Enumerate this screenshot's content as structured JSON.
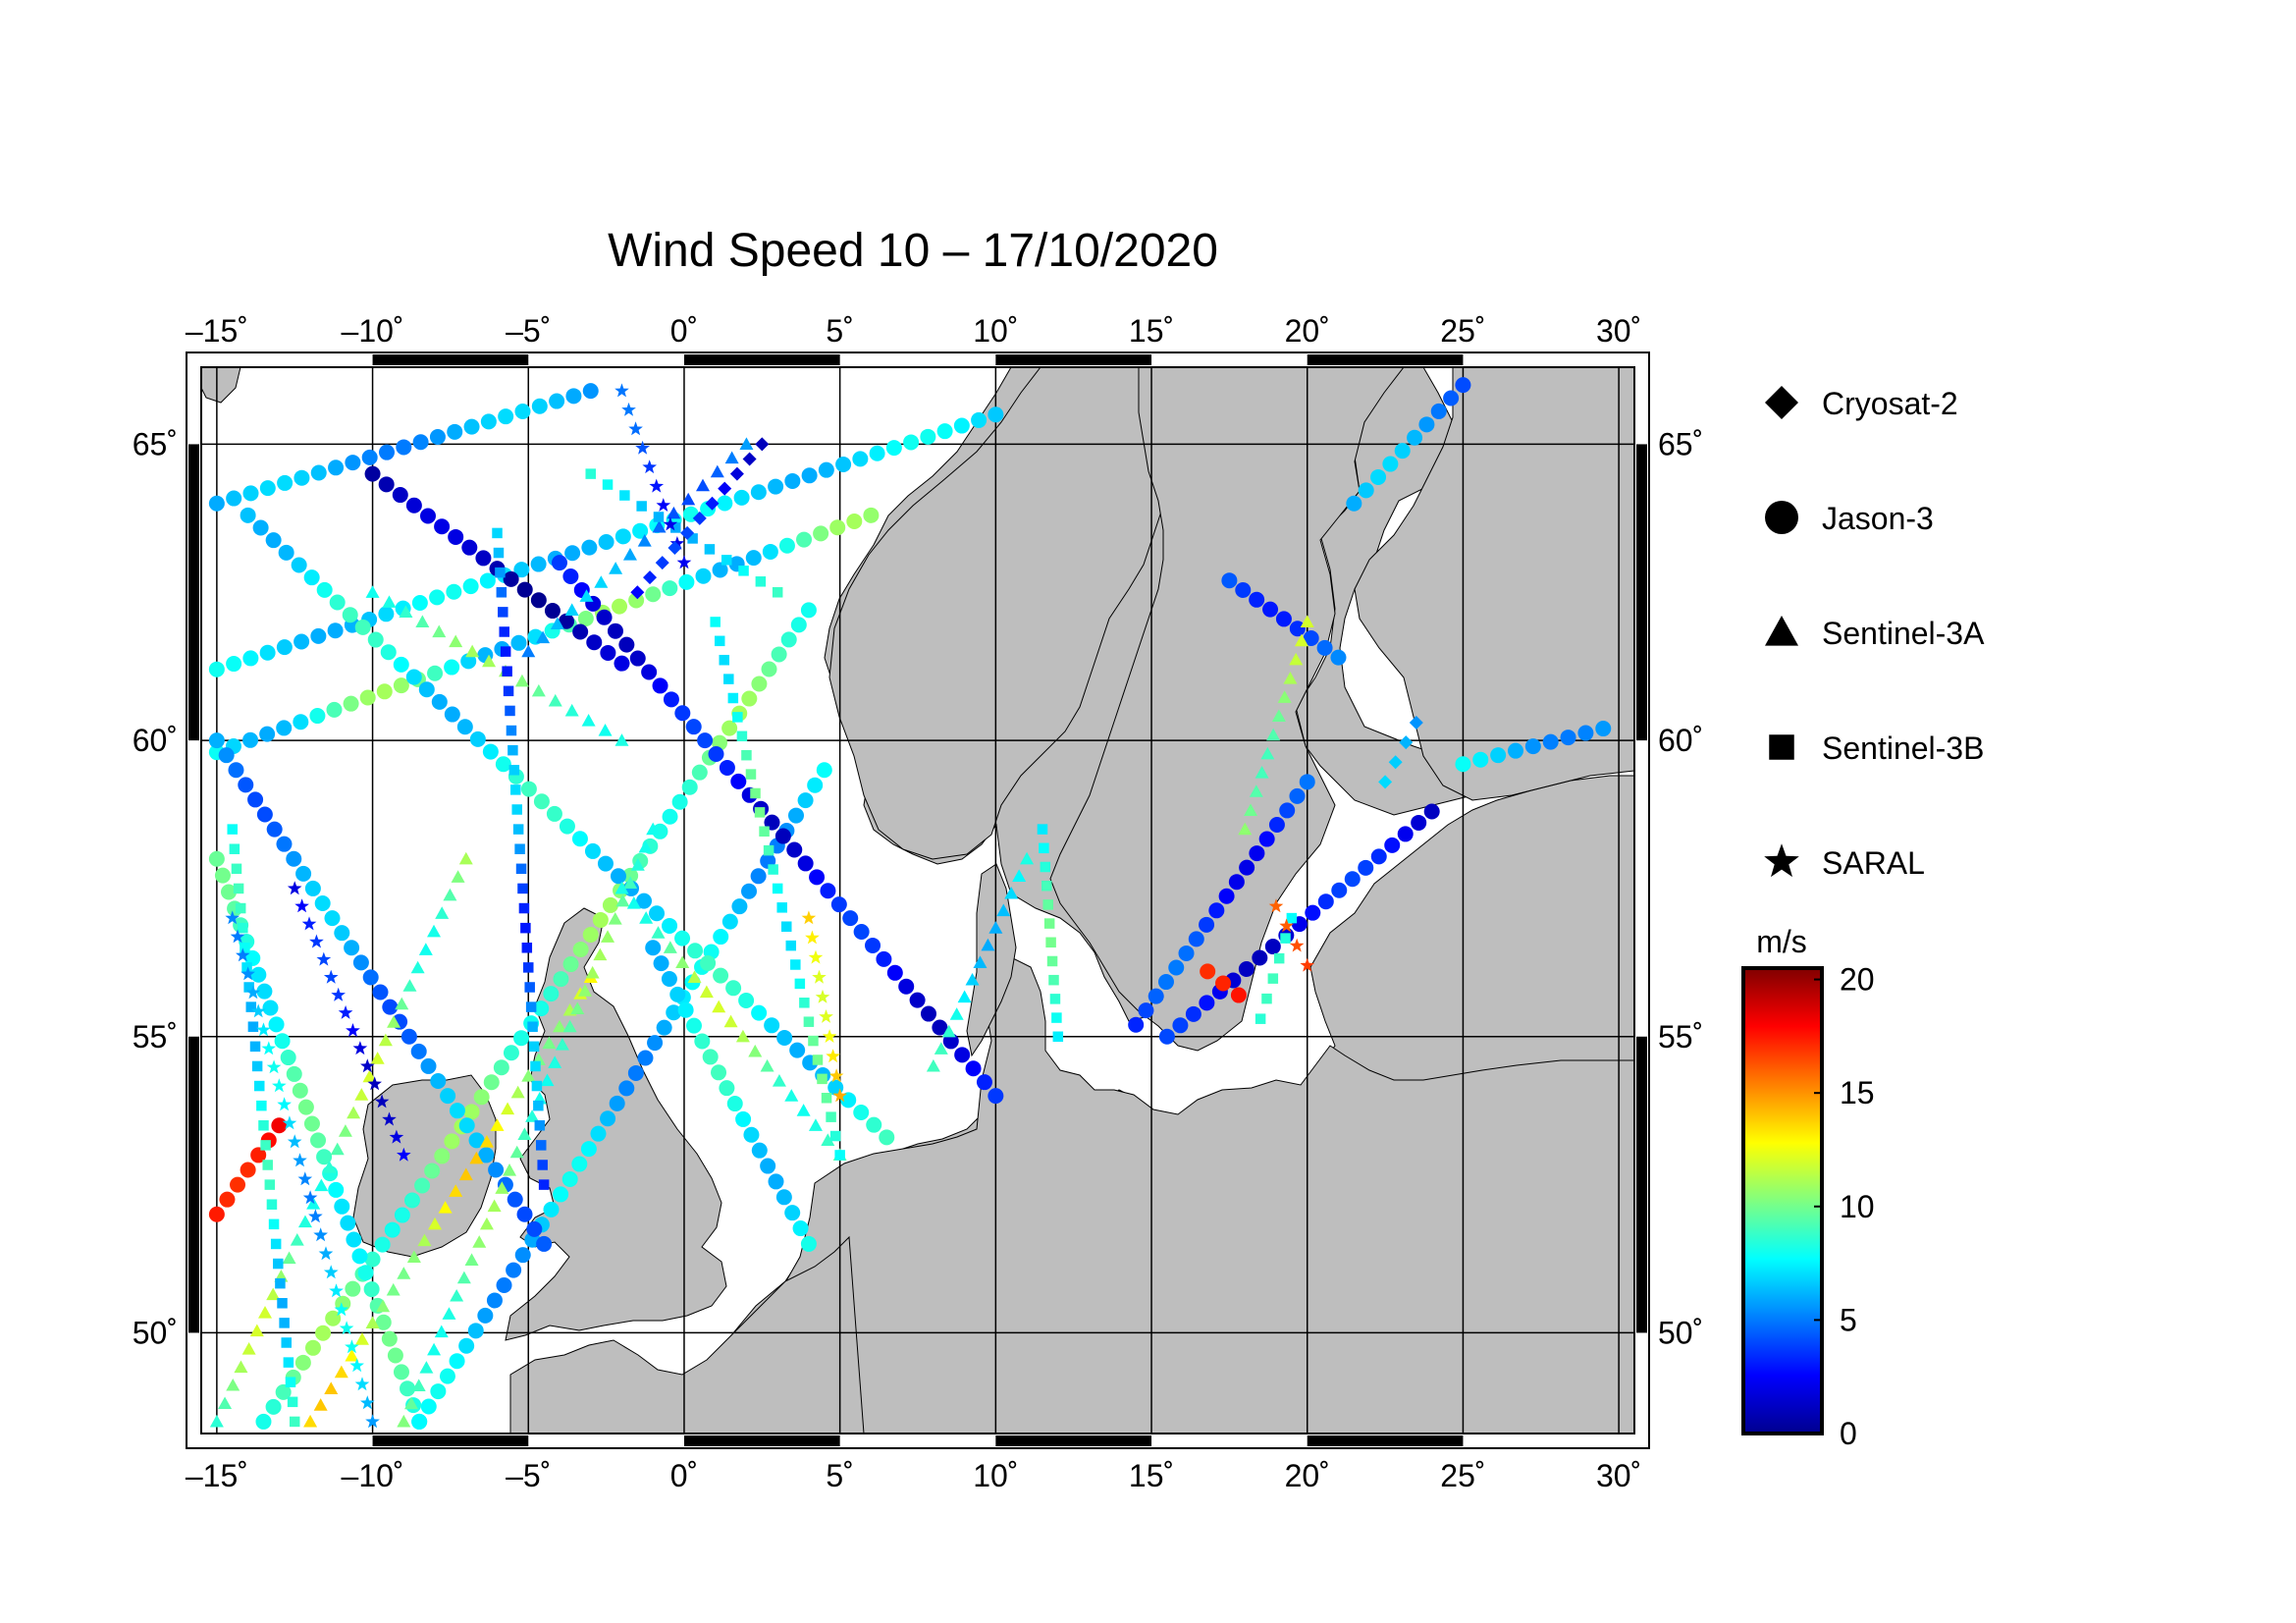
{
  "title": "Wind Speed 10 – 17/10/2020",
  "map": {
    "lon_range": [
      -15.5,
      30.5
    ],
    "lat_range": [
      48.3,
      66.3
    ],
    "lon_ticks": [
      -15,
      -10,
      -5,
      0,
      5,
      10,
      15,
      20,
      25,
      30
    ],
    "lon_tick_labels": [
      "–15˚",
      "–10˚",
      "–5˚",
      "0˚",
      "5˚",
      "10˚",
      "15˚",
      "20˚",
      "25˚",
      "30˚"
    ],
    "lat_ticks": [
      50,
      55,
      60,
      65
    ],
    "lat_tick_labels": [
      "50˚",
      "55˚",
      "60˚",
      "65˚"
    ],
    "grid": true,
    "land_color": "#bebebe",
    "sea_color": "#ffffff"
  },
  "legend": {
    "items": [
      {
        "label": "Cryosat-2",
        "marker": "diamond"
      },
      {
        "label": "Jason-3",
        "marker": "circle"
      },
      {
        "label": "Sentinel-3A",
        "marker": "triangle"
      },
      {
        "label": "Sentinel-3B",
        "marker": "square"
      },
      {
        "label": "SARAL",
        "marker": "star"
      }
    ]
  },
  "colorbar": {
    "unit": "m/s",
    "range": [
      0,
      20.5
    ],
    "ticks": [
      0,
      5,
      10,
      15,
      20
    ],
    "tick_labels": [
      "0",
      "5",
      "10",
      "15",
      "20"
    ],
    "colormap": [
      "#00008f",
      "#0000ff",
      "#0080ff",
      "#00ffff",
      "#80ff80",
      "#ffff00",
      "#ff8000",
      "#ff0000",
      "#800000"
    ]
  },
  "chart_data": {
    "type": "scatter",
    "xlabel": "",
    "ylabel": "",
    "xlim": [
      -15.5,
      30.5
    ],
    "ylim": [
      48.3,
      66.3
    ],
    "tracks": [
      {
        "satellite": "Jason-3",
        "from": [
          -15,
          64.0
        ],
        "to": [
          -3,
          65.9
        ],
        "speed": [
          5,
          7
        ]
      },
      {
        "satellite": "Jason-3",
        "from": [
          -15,
          61.2
        ],
        "to": [
          10,
          65.5
        ],
        "speed": [
          6,
          8
        ]
      },
      {
        "satellite": "Jason-3",
        "from": [
          -15,
          59.8
        ],
        "to": [
          6,
          63.8
        ],
        "speed": [
          6,
          11
        ]
      },
      {
        "satellite": "Jason-3",
        "from": [
          -13.5,
          48.5
        ],
        "to": [
          4,
          62.2
        ],
        "speed": [
          8,
          11
        ]
      },
      {
        "satellite": "Jason-3",
        "from": [
          -8.5,
          48.5
        ],
        "to": [
          4.5,
          59.5
        ],
        "speed": [
          5,
          8
        ]
      },
      {
        "satellite": "Jason-3",
        "from": [
          -4,
          63.0
        ],
        "to": [
          10,
          54.0
        ],
        "speed": [
          1,
          4
        ]
      },
      {
        "satellite": "Jason-3",
        "from": [
          -14,
          63.8
        ],
        "to": [
          6.5,
          53.3
        ],
        "speed": [
          6,
          9
        ]
      },
      {
        "satellite": "Jason-3",
        "from": [
          -10,
          64.5
        ],
        "to": [
          -2,
          61.3
        ],
        "speed": [
          0,
          2
        ]
      },
      {
        "satellite": "Jason-3",
        "from": [
          -15,
          58.0
        ],
        "to": [
          -8.5,
          48.5
        ],
        "speed": [
          7,
          10
        ]
      },
      {
        "satellite": "Jason-3",
        "from": [
          -15,
          60.0
        ],
        "to": [
          -4.5,
          51.5
        ],
        "speed": [
          4,
          7
        ]
      },
      {
        "satellite": "Jason-3",
        "from": [
          -1,
          56.5
        ],
        "to": [
          4,
          51.5
        ],
        "speed": [
          6,
          9
        ]
      },
      {
        "satellite": "Jason-3",
        "from": [
          14.5,
          55.2
        ],
        "to": [
          20,
          59.3
        ],
        "speed": [
          2,
          5
        ]
      },
      {
        "satellite": "Jason-3",
        "from": [
          15.5,
          55.0
        ],
        "to": [
          24,
          58.8
        ],
        "speed": [
          1,
          4
        ]
      },
      {
        "satellite": "Jason-3",
        "from": [
          17.5,
          62.7
        ],
        "to": [
          21,
          61.4
        ],
        "speed": [
          3,
          6
        ]
      },
      {
        "satellite": "Jason-3",
        "from": [
          16.8,
          56.1
        ],
        "to": [
          17.8,
          55.7
        ],
        "speed": [
          17,
          19
        ]
      },
      {
        "satellite": "Jason-3",
        "from": [
          21.5,
          64.0
        ],
        "to": [
          25,
          66.0
        ],
        "speed": [
          4,
          7
        ]
      },
      {
        "satellite": "Jason-3",
        "from": [
          25,
          59.6
        ],
        "to": [
          29.5,
          60.2
        ],
        "speed": [
          5,
          8
        ]
      },
      {
        "satellite": "Jason-3",
        "from": [
          -15,
          52.0
        ],
        "to": [
          -13,
          53.5
        ],
        "speed": [
          17,
          19
        ]
      },
      {
        "satellite": "Sentinel-3A",
        "from": [
          -15,
          48.5
        ],
        "to": [
          -7,
          58.0
        ],
        "speed": [
          8,
          12
        ]
      },
      {
        "satellite": "Sentinel-3A",
        "from": [
          -12,
          48.5
        ],
        "to": [
          -3,
          56.0
        ],
        "speed": [
          10,
          14
        ]
      },
      {
        "satellite": "Sentinel-3A",
        "from": [
          -9,
          48.5
        ],
        "to": [
          -1,
          58.5
        ],
        "speed": [
          8,
          11
        ]
      },
      {
        "satellite": "Sentinel-3A",
        "from": [
          -2,
          57.5
        ],
        "to": [
          5,
          53.0
        ],
        "speed": [
          8,
          12
        ]
      },
      {
        "satellite": "Sentinel-3A",
        "from": [
          -5,
          61.5
        ],
        "to": [
          2,
          65.0
        ],
        "speed": [
          4,
          7
        ]
      },
      {
        "satellite": "Sentinel-3A",
        "from": [
          8,
          54.5
        ],
        "to": [
          11,
          58.0
        ],
        "speed": [
          6,
          9
        ]
      },
      {
        "satellite": "Sentinel-3A",
        "from": [
          18,
          58.5
        ],
        "to": [
          20,
          62.0
        ],
        "speed": [
          9,
          12
        ]
      },
      {
        "satellite": "Sentinel-3A",
        "from": [
          -10,
          62.5
        ],
        "to": [
          -2,
          60.0
        ],
        "speed": [
          8,
          11
        ]
      },
      {
        "satellite": "Sentinel-3B",
        "from": [
          -14.5,
          58.5
        ],
        "to": [
          -12.5,
          48.5
        ],
        "speed": [
          6,
          9
        ]
      },
      {
        "satellite": "Sentinel-3B",
        "from": [
          -6,
          63.5
        ],
        "to": [
          -4.5,
          52.5
        ],
        "speed": [
          3,
          7
        ]
      },
      {
        "satellite": "Sentinel-3B",
        "from": [
          1,
          62.0
        ],
        "to": [
          5,
          53.0
        ],
        "speed": [
          7,
          10
        ]
      },
      {
        "satellite": "Sentinel-3B",
        "from": [
          11.5,
          58.5
        ],
        "to": [
          12,
          55.0
        ],
        "speed": [
          7,
          10
        ]
      },
      {
        "satellite": "Sentinel-3B",
        "from": [
          18.5,
          55.3
        ],
        "to": [
          19.5,
          57.0
        ],
        "speed": [
          6,
          9
        ]
      },
      {
        "satellite": "Sentinel-3B",
        "from": [
          -3,
          64.5
        ],
        "to": [
          3,
          62.5
        ],
        "speed": [
          6,
          9
        ]
      },
      {
        "satellite": "SARAL",
        "from": [
          -14.5,
          57.0
        ],
        "to": [
          -10,
          48.5
        ],
        "speed": [
          5,
          8
        ]
      },
      {
        "satellite": "SARAL",
        "from": [
          -12.5,
          57.5
        ],
        "to": [
          -9,
          53.0
        ],
        "speed": [
          1,
          4
        ]
      },
      {
        "satellite": "SARAL",
        "from": [
          -2,
          65.9
        ],
        "to": [
          0,
          63.0
        ],
        "speed": [
          2,
          5
        ]
      },
      {
        "satellite": "SARAL",
        "from": [
          4,
          57.0
        ],
        "to": [
          5,
          54.0
        ],
        "speed": [
          12,
          15
        ]
      },
      {
        "satellite": "SARAL",
        "from": [
          19,
          57.2
        ],
        "to": [
          20,
          56.2
        ],
        "speed": [
          16,
          18
        ]
      },
      {
        "satellite": "Cryosat-2",
        "from": [
          -1.5,
          62.5
        ],
        "to": [
          2.5,
          65.0
        ],
        "speed": [
          1,
          4
        ]
      },
      {
        "satellite": "Cryosat-2",
        "from": [
          22.5,
          59.3
        ],
        "to": [
          23.5,
          60.3
        ],
        "speed": [
          4,
          7
        ]
      }
    ]
  }
}
